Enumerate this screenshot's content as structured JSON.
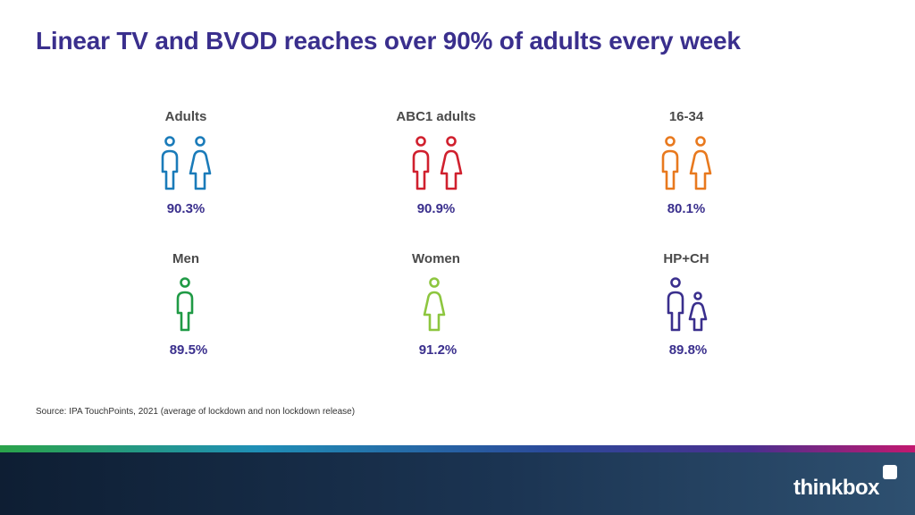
{
  "title": "Linear TV and BVOD reaches over 90% of adults every week",
  "groups": [
    {
      "label": "Adults",
      "value": "90.3%",
      "color": "#1a7bb9",
      "icon": "male-female-figures-icon"
    },
    {
      "label": "ABC1 adults",
      "value": "90.9%",
      "color": "#d0202e",
      "icon": "male-female-figures-icon"
    },
    {
      "label": "16-34",
      "value": "80.1%",
      "color": "#e8791e",
      "icon": "male-female-figures-icon"
    },
    {
      "label": "Men",
      "value": "89.5%",
      "color": "#1f9a45",
      "icon": "male-figure-icon"
    },
    {
      "label": "Women",
      "value": "91.2%",
      "color": "#8dc63f",
      "icon": "female-figure-icon"
    },
    {
      "label": "HP+CH",
      "value": "89.8%",
      "color": "#3a2f8d",
      "icon": "adult-child-figures-icon"
    }
  ],
  "source": "Source: IPA TouchPoints, 2021 (average of lockdown and non lockdown release)",
  "logo": {
    "text": "thinkbox"
  },
  "colors": {
    "title": "#3a2f8d",
    "value": "#3a2f8d",
    "label": "#4a4a4a"
  }
}
